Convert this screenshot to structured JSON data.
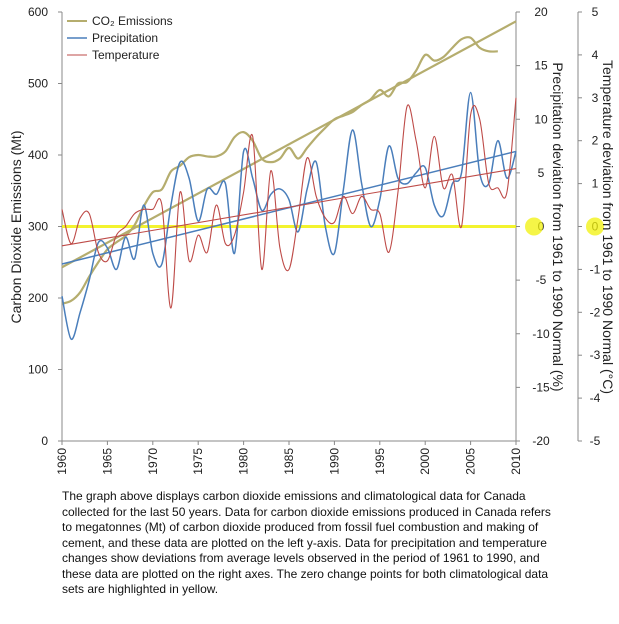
{
  "caption": "The graph above displays carbon dioxide emissions and climatological data for Canada collected for the last 50 years. Data for carbon dioxide emissions produced in Canada refers to megatonnes (Mt) of carbon dioxide produced from fossil fuel combustion and making of cement, and these data are plotted on the left y-axis. Data for precipitation and temperature changes show deviations from average levels observed in the period of 1961 to 1990, and these data are plotted on the right axes.  The zero change points for both climatological data sets are highlighted in yellow.",
  "chart_data": {
    "type": "line",
    "title": "",
    "xlabel": "",
    "xlim": [
      1960,
      2010
    ],
    "x_ticks": [
      "1960",
      "1965",
      "1970",
      "1975",
      "1980",
      "1985",
      "1990",
      "1995",
      "2000",
      "2005",
      "2010"
    ],
    "axes": {
      "left": {
        "label": "Carbon Dioxide Emissions (Mt)",
        "ylim": [
          0,
          600
        ],
        "ticks": [
          "0",
          "100",
          "200",
          "300",
          "400",
          "500",
          "600"
        ]
      },
      "right1": {
        "label": "Precipitation deviation from 1961 to 1990 Normal (%)",
        "ylim": [
          -20,
          20
        ],
        "ticks": [
          "-20",
          "-15",
          "-10",
          "-5",
          "0",
          "5",
          "10",
          "15",
          "20"
        ]
      },
      "right2": {
        "label": "Temperature deviation from 1961 to 1990 Normal (°C)",
        "ylim": [
          -5,
          5
        ],
        "ticks": [
          "-5",
          "-4",
          "-3",
          "-2",
          "-1",
          "0",
          "1",
          "2",
          "3",
          "4",
          "5"
        ]
      }
    },
    "legend": {
      "position": "top-left",
      "entries": [
        "CO₂ Emissions",
        "Precipitation",
        "Temperature"
      ]
    },
    "colors": {
      "co2": "#b5ad6e",
      "precip": "#4a7ebb",
      "temp": "#be4b48",
      "highlight": "#f2f20a"
    },
    "zero_highlight": {
      "left_value": 300,
      "right1_value": 0,
      "right2_value": 0
    },
    "series": [
      {
        "name": "CO₂ Emissions",
        "axis": "left",
        "x": [
          1960,
          1961,
          1962,
          1963,
          1964,
          1965,
          1966,
          1967,
          1968,
          1969,
          1970,
          1971,
          1972,
          1973,
          1974,
          1975,
          1976,
          1977,
          1978,
          1979,
          1980,
          1981,
          1982,
          1983,
          1984,
          1985,
          1986,
          1987,
          1988,
          1989,
          1990,
          1991,
          1992,
          1993,
          1994,
          1995,
          1996,
          1997,
          1998,
          1999,
          2000,
          2001,
          2002,
          2003,
          2004,
          2005,
          2006,
          2007,
          2008
        ],
        "values": [
          192,
          196,
          208,
          230,
          250,
          268,
          278,
          287,
          302,
          328,
          348,
          352,
          377,
          385,
          397,
          400,
          398,
          398,
          405,
          425,
          432,
          420,
          395,
          390,
          395,
          410,
          395,
          410,
          425,
          438,
          450,
          455,
          460,
          470,
          478,
          491,
          482,
          500,
          502,
          518,
          540,
          532,
          537,
          550,
          562,
          564,
          550,
          545,
          545
        ]
      },
      {
        "name": "CO₂ Emissions trend",
        "axis": "left",
        "x": [
          1960,
          2010
        ],
        "values": [
          243,
          587
        ]
      },
      {
        "name": "Precipitation",
        "axis": "right1",
        "x": [
          1960,
          1961,
          1962,
          1963,
          1964,
          1965,
          1966,
          1967,
          1968,
          1969,
          1970,
          1971,
          1972,
          1973,
          1974,
          1975,
          1976,
          1977,
          1978,
          1979,
          1980,
          1981,
          1982,
          1983,
          1984,
          1985,
          1986,
          1987,
          1988,
          1989,
          1990,
          1991,
          1992,
          1993,
          1994,
          1995,
          1996,
          1997,
          1998,
          1999,
          2000,
          2001,
          2002,
          2003,
          2004,
          2005,
          2006,
          2007,
          2008,
          2009,
          2010
        ],
        "values": [
          -6.5,
          -10.5,
          -8,
          -5,
          -1.5,
          -2,
          -4,
          -1,
          -3,
          2,
          -2.5,
          -3.5,
          2,
          6,
          4.5,
          0.5,
          3.5,
          3,
          4,
          -2.5,
          7,
          4.5,
          1.5,
          3,
          3.5,
          2.5,
          -0.5,
          3.5,
          6,
          0,
          -2.5,
          3.5,
          9,
          4,
          0,
          2.5,
          7.5,
          4.5,
          4,
          5,
          5.5,
          2,
          1,
          4,
          5,
          12.5,
          5,
          4,
          8,
          4.5,
          7
        ]
      },
      {
        "name": "Precipitation trend",
        "axis": "right1",
        "x": [
          1960,
          2010
        ],
        "values": [
          -3.5,
          7
        ]
      },
      {
        "name": "Temperature",
        "axis": "right2",
        "x": [
          1960,
          1961,
          1962,
          1963,
          1964,
          1965,
          1966,
          1967,
          1968,
          1969,
          1970,
          1971,
          1972,
          1973,
          1974,
          1975,
          1976,
          1977,
          1978,
          1979,
          1980,
          1981,
          1982,
          1983,
          1984,
          1985,
          1986,
          1987,
          1988,
          1989,
          1990,
          1991,
          1992,
          1993,
          1994,
          1995,
          1996,
          1997,
          1998,
          1999,
          2000,
          2001,
          2002,
          2003,
          2004,
          2005,
          2006,
          2007,
          2008,
          2009,
          2010
        ],
        "values": [
          0.4,
          -0.4,
          0.2,
          0.3,
          -0.6,
          -0.8,
          -0.2,
          0,
          0.3,
          0.4,
          0.4,
          0.5,
          -1.9,
          0.8,
          -0.8,
          -0.2,
          -0.6,
          0.5,
          -0.4,
          -0.2,
          0.8,
          2.1,
          -1.0,
          1.3,
          -0.5,
          -1.0,
          0.2,
          1.6,
          0.7,
          0.2,
          0.1,
          0.7,
          0.3,
          0.7,
          0.4,
          0.3,
          -0.6,
          0.8,
          2.8,
          2.0,
          0.9,
          2.1,
          0.9,
          1.2,
          0,
          2.6,
          2.5,
          1.0,
          0.9,
          0.8,
          3.0
        ]
      },
      {
        "name": "Temperature trend",
        "axis": "right2",
        "x": [
          1960,
          2010
        ],
        "values": [
          -0.45,
          1.35
        ]
      }
    ]
  }
}
